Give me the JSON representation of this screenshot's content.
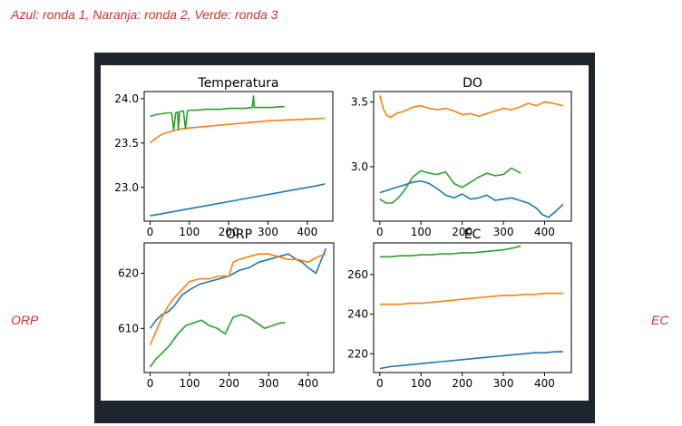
{
  "caption": "Azul: ronda 1, Naranja: ronda 2, Verde: ronda 3",
  "side_labels": {
    "left": "ORP",
    "right": "EC"
  },
  "colors": {
    "caption": "#d32f2f",
    "frame": "#1e252d",
    "blue": "#1f77b4",
    "orange": "#ff7f0e",
    "green": "#2ca02c"
  },
  "chart_data": [
    {
      "type": "line",
      "title": "Temperatura",
      "xlabel": "",
      "ylabel": "",
      "xlim": [
        -15,
        465
      ],
      "ylim": [
        22.62,
        24.08
      ],
      "xticks": [
        0,
        100,
        200,
        300,
        400
      ],
      "yticks": [
        23.0,
        23.5,
        24.0
      ],
      "ytick_labels": [
        "23.0",
        "23.5",
        "24.0"
      ],
      "grid": false,
      "series": [
        {
          "color": "blue",
          "x": [
            0,
            25,
            50,
            75,
            100,
            125,
            150,
            175,
            200,
            225,
            250,
            275,
            300,
            325,
            350,
            375,
            400,
            425,
            445
          ],
          "y": [
            22.68,
            22.7,
            22.72,
            22.74,
            22.76,
            22.78,
            22.8,
            22.82,
            22.84,
            22.86,
            22.88,
            22.9,
            22.92,
            22.94,
            22.96,
            22.98,
            23.0,
            23.02,
            23.04
          ]
        },
        {
          "color": "orange",
          "x": [
            0,
            10,
            20,
            30,
            45,
            60,
            80,
            100,
            125,
            150,
            175,
            200,
            225,
            250,
            275,
            300,
            325,
            350,
            375,
            400,
            425,
            445
          ],
          "y": [
            23.5,
            23.54,
            23.57,
            23.6,
            23.62,
            23.64,
            23.66,
            23.67,
            23.68,
            23.69,
            23.7,
            23.71,
            23.72,
            23.73,
            23.74,
            23.75,
            23.755,
            23.76,
            23.765,
            23.77,
            23.775,
            23.78
          ]
        },
        {
          "color": "green",
          "x": [
            0,
            15,
            30,
            45,
            55,
            60,
            65,
            70,
            72,
            75,
            80,
            85,
            90,
            95,
            100,
            120,
            140,
            160,
            180,
            200,
            220,
            240,
            260,
            263,
            265,
            268,
            270,
            290,
            310,
            330,
            342
          ],
          "y": [
            23.8,
            23.82,
            23.83,
            23.84,
            23.84,
            23.65,
            23.84,
            23.85,
            23.65,
            23.85,
            23.86,
            23.86,
            23.66,
            23.86,
            23.87,
            23.87,
            23.88,
            23.88,
            23.88,
            23.89,
            23.89,
            23.89,
            23.9,
            24.03,
            23.9,
            23.9,
            23.9,
            23.9,
            23.9,
            23.91,
            23.91
          ]
        }
      ]
    },
    {
      "type": "line",
      "title": "DO",
      "xlabel": "",
      "ylabel": "",
      "xlim": [
        -15,
        465
      ],
      "ylim": [
        2.58,
        3.58
      ],
      "xticks": [
        0,
        100,
        200,
        300,
        400
      ],
      "yticks": [
        3.0,
        3.5
      ],
      "ytick_labels": [
        "3.0",
        "3.5"
      ],
      "grid": false,
      "series": [
        {
          "color": "blue",
          "x": [
            0,
            20,
            40,
            60,
            80,
            100,
            120,
            140,
            160,
            180,
            200,
            220,
            240,
            260,
            280,
            300,
            320,
            340,
            360,
            380,
            395,
            410,
            425,
            445
          ],
          "y": [
            2.8,
            2.82,
            2.84,
            2.86,
            2.88,
            2.89,
            2.87,
            2.83,
            2.78,
            2.76,
            2.79,
            2.75,
            2.76,
            2.78,
            2.74,
            2.75,
            2.76,
            2.74,
            2.72,
            2.68,
            2.63,
            2.61,
            2.65,
            2.71
          ]
        },
        {
          "color": "orange",
          "x": [
            0,
            8,
            16,
            25,
            40,
            60,
            80,
            100,
            120,
            140,
            160,
            180,
            200,
            220,
            240,
            260,
            280,
            300,
            320,
            340,
            360,
            380,
            400,
            420,
            445
          ],
          "y": [
            3.55,
            3.45,
            3.4,
            3.38,
            3.41,
            3.43,
            3.46,
            3.47,
            3.45,
            3.44,
            3.45,
            3.43,
            3.4,
            3.41,
            3.39,
            3.41,
            3.43,
            3.45,
            3.44,
            3.46,
            3.49,
            3.47,
            3.5,
            3.49,
            3.47
          ]
        },
        {
          "color": "green",
          "x": [
            0,
            15,
            30,
            45,
            60,
            80,
            100,
            120,
            140,
            160,
            180,
            200,
            220,
            240,
            260,
            280,
            300,
            320,
            342
          ],
          "y": [
            2.75,
            2.72,
            2.72,
            2.76,
            2.82,
            2.92,
            2.97,
            2.95,
            2.94,
            2.96,
            2.87,
            2.84,
            2.88,
            2.92,
            2.95,
            2.93,
            2.94,
            2.99,
            2.95
          ]
        }
      ]
    },
    {
      "type": "line",
      "title": "ORP",
      "xlabel": "",
      "ylabel": "",
      "xlim": [
        -15,
        465
      ],
      "ylim": [
        602.0,
        625.5
      ],
      "xticks": [
        0,
        100,
        200,
        300,
        400
      ],
      "yticks": [
        610,
        620
      ],
      "ytick_labels": [
        "610",
        "620"
      ],
      "grid": false,
      "series": [
        {
          "color": "blue",
          "x": [
            0,
            15,
            30,
            45,
            60,
            80,
            100,
            125,
            150,
            175,
            200,
            225,
            250,
            275,
            300,
            325,
            350,
            360,
            370,
            385,
            400,
            420,
            445
          ],
          "y": [
            610,
            611.5,
            612.5,
            613,
            614,
            616,
            617,
            618,
            618.5,
            619,
            619.5,
            620.5,
            621,
            622,
            622.5,
            623,
            623.5,
            623,
            622.5,
            622,
            621,
            620,
            624.5
          ]
        },
        {
          "color": "orange",
          "x": [
            0,
            15,
            30,
            45,
            60,
            80,
            100,
            125,
            150,
            175,
            200,
            210,
            225,
            250,
            275,
            300,
            325,
            350,
            375,
            400,
            425,
            445
          ],
          "y": [
            607,
            609.5,
            612,
            614,
            615.5,
            617,
            618.5,
            619,
            619,
            619.5,
            619.5,
            622,
            622.5,
            623,
            623.5,
            623.5,
            623,
            622.5,
            622.5,
            622,
            623,
            623.5
          ]
        },
        {
          "color": "green",
          "x": [
            0,
            15,
            30,
            50,
            70,
            90,
            110,
            130,
            150,
            170,
            190,
            210,
            230,
            250,
            270,
            290,
            310,
            330,
            342
          ],
          "y": [
            603,
            604.5,
            605.5,
            607,
            609,
            610.5,
            611,
            611.5,
            610.5,
            610,
            609,
            612,
            612.5,
            612,
            611,
            610,
            610.5,
            611,
            611
          ]
        }
      ]
    },
    {
      "type": "line",
      "title": "EC",
      "xlabel": "",
      "ylabel": "",
      "xlim": [
        -15,
        465
      ],
      "ylim": [
        210.5,
        276.0
      ],
      "xticks": [
        0,
        100,
        200,
        300,
        400
      ],
      "yticks": [
        220,
        240,
        260
      ],
      "ytick_labels": [
        "220",
        "240",
        "260"
      ],
      "grid": false,
      "series": [
        {
          "color": "blue",
          "x": [
            0,
            25,
            50,
            75,
            100,
            125,
            150,
            175,
            200,
            225,
            250,
            275,
            300,
            325,
            350,
            375,
            400,
            425,
            445
          ],
          "y": [
            212.5,
            213.5,
            214,
            214.5,
            215,
            215.5,
            216,
            216.5,
            217,
            217.5,
            218,
            218.5,
            219,
            219.5,
            220,
            220.5,
            220.5,
            221,
            221
          ]
        },
        {
          "color": "orange",
          "x": [
            0,
            25,
            50,
            75,
            100,
            125,
            150,
            175,
            200,
            225,
            250,
            275,
            300,
            325,
            350,
            375,
            400,
            425,
            445
          ],
          "y": [
            245,
            245,
            245,
            245.5,
            245.5,
            246,
            246.5,
            247,
            247.5,
            248,
            248.5,
            249,
            249.5,
            249.5,
            250,
            250,
            250.5,
            250.5,
            250.5
          ]
        },
        {
          "color": "green",
          "x": [
            0,
            25,
            50,
            75,
            100,
            125,
            150,
            175,
            200,
            225,
            250,
            275,
            300,
            325,
            342
          ],
          "y": [
            269,
            269,
            269.5,
            269.5,
            270,
            270,
            270.5,
            270.5,
            271,
            271,
            271.5,
            272,
            272.5,
            273.5,
            274.5
          ]
        }
      ]
    }
  ]
}
